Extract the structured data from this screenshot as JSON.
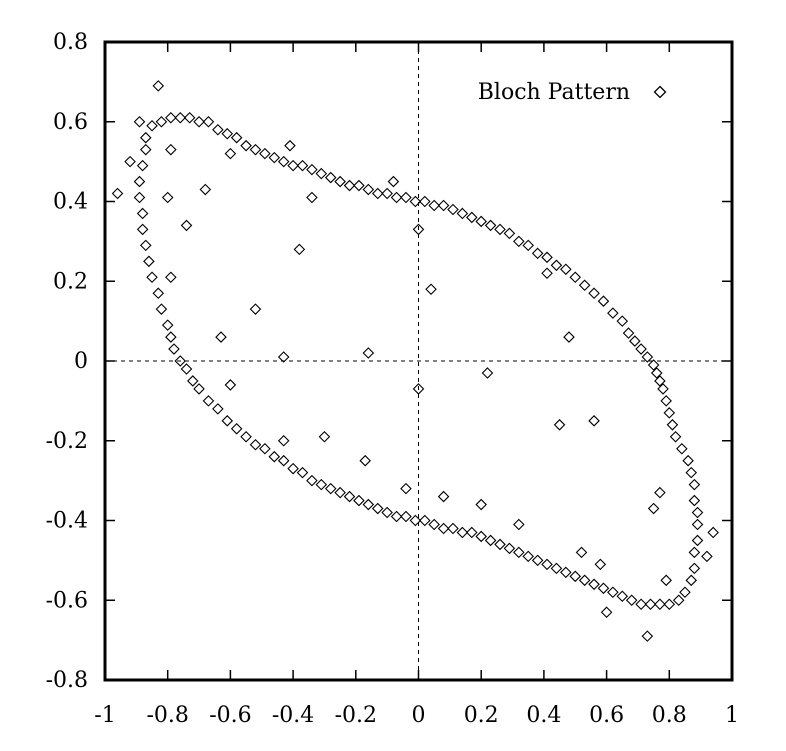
{
  "chart_data": {
    "type": "scatter",
    "xlim": [
      -1,
      1
    ],
    "ylim": [
      -0.8,
      0.8
    ],
    "x_ticks": [
      -1,
      -0.8,
      -0.6,
      -0.4,
      -0.2,
      0,
      0.2,
      0.4,
      0.6,
      0.8,
      1
    ],
    "y_ticks": [
      -0.8,
      -0.6,
      -0.4,
      -0.2,
      0,
      0.2,
      0.4,
      0.6,
      0.8
    ],
    "x_tick_labels": [
      "-1",
      "-0.8",
      "-0.6",
      "-0.4",
      "-0.2",
      "0",
      "0.2",
      "0.4",
      "0.6",
      "0.8",
      "1"
    ],
    "y_tick_labels": [
      "-0.8",
      "-0.6",
      "-0.4",
      "-0.2",
      "0",
      "0.2",
      "0.4",
      "0.6",
      "0.8"
    ],
    "zero_lines": true,
    "grid": false,
    "legend_position": "top-right",
    "marker": "diamond",
    "series": [
      {
        "name": "Bloch Pattern",
        "color": "#000000",
        "points": [
          [
            -0.96,
            0.42
          ],
          [
            -0.92,
            0.5
          ],
          [
            -0.89,
            0.6
          ],
          [
            -0.87,
            0.56
          ],
          [
            -0.83,
            0.69
          ],
          [
            -0.85,
            0.59
          ],
          [
            -0.82,
            0.6
          ],
          [
            -0.79,
            0.61
          ],
          [
            -0.76,
            0.61
          ],
          [
            -0.73,
            0.61
          ],
          [
            -0.7,
            0.6
          ],
          [
            -0.67,
            0.6
          ],
          [
            -0.64,
            0.58
          ],
          [
            -0.61,
            0.57
          ],
          [
            -0.58,
            0.56
          ],
          [
            -0.55,
            0.54
          ],
          [
            -0.52,
            0.53
          ],
          [
            -0.49,
            0.52
          ],
          [
            -0.46,
            0.51
          ],
          [
            -0.43,
            0.5
          ],
          [
            -0.4,
            0.49
          ],
          [
            -0.37,
            0.49
          ],
          [
            -0.34,
            0.48
          ],
          [
            -0.31,
            0.47
          ],
          [
            -0.28,
            0.46
          ],
          [
            -0.25,
            0.45
          ],
          [
            -0.22,
            0.44
          ],
          [
            -0.19,
            0.44
          ],
          [
            -0.16,
            0.43
          ],
          [
            -0.13,
            0.42
          ],
          [
            -0.1,
            0.42
          ],
          [
            -0.07,
            0.41
          ],
          [
            -0.04,
            0.41
          ],
          [
            -0.01,
            0.4
          ],
          [
            0.02,
            0.4
          ],
          [
            0.05,
            0.39
          ],
          [
            0.08,
            0.39
          ],
          [
            0.11,
            0.38
          ],
          [
            0.14,
            0.37
          ],
          [
            0.17,
            0.36
          ],
          [
            0.2,
            0.35
          ],
          [
            0.23,
            0.34
          ],
          [
            0.26,
            0.33
          ],
          [
            0.29,
            0.32
          ],
          [
            0.32,
            0.3
          ],
          [
            0.35,
            0.29
          ],
          [
            0.38,
            0.27
          ],
          [
            0.41,
            0.26
          ],
          [
            0.44,
            0.24
          ],
          [
            0.47,
            0.23
          ],
          [
            0.5,
            0.21
          ],
          [
            0.53,
            0.19
          ],
          [
            0.56,
            0.17
          ],
          [
            0.59,
            0.15
          ],
          [
            0.62,
            0.12
          ],
          [
            0.65,
            0.1
          ],
          [
            0.67,
            0.07
          ],
          [
            0.69,
            0.05
          ],
          [
            0.71,
            0.03
          ],
          [
            0.73,
            0.01
          ],
          [
            0.75,
            -0.01
          ],
          [
            0.76,
            -0.03
          ],
          [
            0.77,
            -0.05
          ],
          [
            0.78,
            -0.07
          ],
          [
            0.79,
            -0.1
          ],
          [
            0.8,
            -0.13
          ],
          [
            0.81,
            -0.16
          ],
          [
            0.82,
            -0.19
          ],
          [
            0.84,
            -0.22
          ],
          [
            0.86,
            -0.25
          ],
          [
            0.87,
            -0.28
          ],
          [
            0.88,
            -0.31
          ],
          [
            0.88,
            -0.35
          ],
          [
            0.89,
            -0.38
          ],
          [
            0.89,
            -0.41
          ],
          [
            0.89,
            -0.45
          ],
          [
            0.88,
            -0.48
          ],
          [
            0.88,
            -0.52
          ],
          [
            0.87,
            -0.55
          ],
          [
            0.85,
            -0.58
          ],
          [
            0.83,
            -0.6
          ],
          [
            0.8,
            -0.61
          ],
          [
            0.77,
            -0.61
          ],
          [
            0.74,
            -0.61
          ],
          [
            0.71,
            -0.61
          ],
          [
            0.68,
            -0.6
          ],
          [
            0.65,
            -0.59
          ],
          [
            0.62,
            -0.58
          ],
          [
            0.59,
            -0.57
          ],
          [
            0.56,
            -0.56
          ],
          [
            0.53,
            -0.55
          ],
          [
            0.5,
            -0.54
          ],
          [
            0.47,
            -0.53
          ],
          [
            0.44,
            -0.52
          ],
          [
            0.41,
            -0.51
          ],
          [
            0.38,
            -0.5
          ],
          [
            0.35,
            -0.49
          ],
          [
            0.32,
            -0.48
          ],
          [
            0.29,
            -0.47
          ],
          [
            0.26,
            -0.46
          ],
          [
            0.23,
            -0.45
          ],
          [
            0.2,
            -0.44
          ],
          [
            0.17,
            -0.43
          ],
          [
            0.14,
            -0.43
          ],
          [
            0.11,
            -0.42
          ],
          [
            0.08,
            -0.42
          ],
          [
            0.05,
            -0.41
          ],
          [
            0.02,
            -0.4
          ],
          [
            -0.01,
            -0.4
          ],
          [
            -0.04,
            -0.39
          ],
          [
            -0.07,
            -0.39
          ],
          [
            -0.1,
            -0.38
          ],
          [
            -0.13,
            -0.37
          ],
          [
            -0.16,
            -0.36
          ],
          [
            -0.19,
            -0.35
          ],
          [
            -0.22,
            -0.34
          ],
          [
            -0.25,
            -0.33
          ],
          [
            -0.28,
            -0.32
          ],
          [
            -0.31,
            -0.31
          ],
          [
            -0.34,
            -0.3
          ],
          [
            -0.37,
            -0.28
          ],
          [
            -0.4,
            -0.27
          ],
          [
            -0.43,
            -0.25
          ],
          [
            -0.46,
            -0.24
          ],
          [
            -0.49,
            -0.22
          ],
          [
            -0.52,
            -0.21
          ],
          [
            -0.55,
            -0.19
          ],
          [
            -0.58,
            -0.17
          ],
          [
            -0.61,
            -0.15
          ],
          [
            -0.64,
            -0.12
          ],
          [
            -0.67,
            -0.1
          ],
          [
            -0.7,
            -0.07
          ],
          [
            -0.72,
            -0.05
          ],
          [
            -0.74,
            -0.02
          ],
          [
            -0.76,
            0.0
          ],
          [
            -0.78,
            0.03
          ],
          [
            -0.79,
            0.06
          ],
          [
            -0.8,
            0.09
          ],
          [
            -0.82,
            0.13
          ],
          [
            -0.83,
            0.17
          ],
          [
            -0.85,
            0.21
          ],
          [
            -0.86,
            0.25
          ],
          [
            -0.87,
            0.29
          ],
          [
            -0.88,
            0.33
          ],
          [
            -0.88,
            0.37
          ],
          [
            -0.89,
            0.41
          ],
          [
            -0.89,
            0.45
          ],
          [
            -0.88,
            0.49
          ],
          [
            -0.87,
            0.53
          ],
          [
            -0.79,
            0.53
          ],
          [
            -0.8,
            0.41
          ],
          [
            -0.6,
            0.52
          ],
          [
            -0.68,
            0.43
          ],
          [
            -0.74,
            0.34
          ],
          [
            -0.79,
            0.21
          ],
          [
            -0.63,
            0.06
          ],
          [
            -0.6,
            -0.06
          ],
          [
            -0.52,
            0.13
          ],
          [
            -0.38,
            0.28
          ],
          [
            -0.34,
            0.41
          ],
          [
            -0.43,
            0.01
          ],
          [
            -0.43,
            -0.2
          ],
          [
            -0.3,
            -0.19
          ],
          [
            -0.16,
            0.02
          ],
          [
            -0.17,
            -0.25
          ],
          [
            -0.04,
            -0.32
          ],
          [
            0.0,
            0.33
          ],
          [
            0.0,
            -0.07
          ],
          [
            0.04,
            0.18
          ],
          [
            0.08,
            -0.34
          ],
          [
            0.2,
            -0.36
          ],
          [
            0.22,
            -0.03
          ],
          [
            0.32,
            -0.41
          ],
          [
            0.41,
            0.22
          ],
          [
            0.45,
            -0.16
          ],
          [
            0.48,
            0.06
          ],
          [
            0.52,
            -0.48
          ],
          [
            0.56,
            -0.15
          ],
          [
            0.58,
            -0.51
          ],
          [
            0.6,
            -0.63
          ],
          [
            0.73,
            -0.69
          ],
          [
            0.75,
            -0.37
          ],
          [
            0.77,
            -0.33
          ],
          [
            0.79,
            -0.55
          ],
          [
            0.92,
            -0.49
          ],
          [
            0.94,
            -0.43
          ],
          [
            -0.41,
            0.54
          ],
          [
            -0.08,
            0.45
          ]
        ]
      }
    ]
  }
}
